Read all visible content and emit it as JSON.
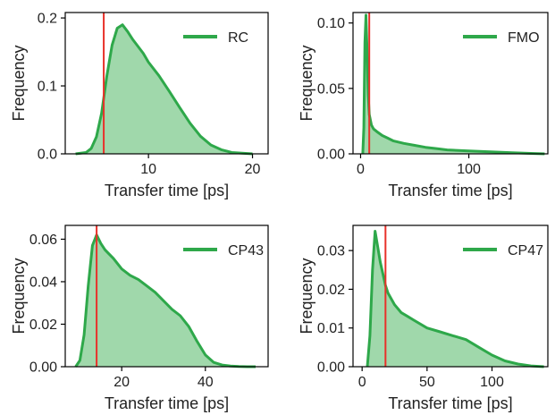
{
  "colors": {
    "line": "#2ea84a",
    "fill": "#8fd19c",
    "marker": "#e8312a",
    "axis": "#000000"
  },
  "chart_data": [
    {
      "type": "area",
      "series": [
        {
          "name": "RC"
        }
      ],
      "xlabel": "Transfer time [ps]",
      "ylabel": "Frequency",
      "xlim": [
        2,
        21.5
      ],
      "ylim": [
        0,
        0.208
      ],
      "xticks": [
        10,
        20
      ],
      "yticks": [
        0.0,
        0.1,
        0.2
      ],
      "ytick_labels": [
        "0.0",
        "0.1",
        "0.2"
      ],
      "legend": "top-right",
      "vline_x": 5.7,
      "x": [
        3,
        4,
        4.5,
        5,
        5.5,
        6,
        6.5,
        7,
        7.5,
        8,
        8.5,
        9,
        9.5,
        10,
        11,
        12,
        13,
        14,
        15,
        16,
        17,
        18,
        19,
        20
      ],
      "y": [
        0.0,
        0.002,
        0.008,
        0.025,
        0.06,
        0.115,
        0.16,
        0.185,
        0.19,
        0.18,
        0.168,
        0.158,
        0.148,
        0.135,
        0.115,
        0.092,
        0.068,
        0.045,
        0.026,
        0.013,
        0.006,
        0.002,
        0.001,
        0.0
      ]
    },
    {
      "type": "area",
      "series": [
        {
          "name": "FMO"
        }
      ],
      "xlabel": "Transfer time [ps]",
      "ylabel": "Frequency",
      "xlim": [
        -7,
        173
      ],
      "ylim": [
        0,
        0.108
      ],
      "xticks": [
        0,
        100
      ],
      "yticks": [
        0.0,
        0.05,
        0.1
      ],
      "ytick_labels": [
        "0.00",
        "0.05",
        "0.10"
      ],
      "legend": "top-right",
      "vline_x": 8,
      "x": [
        2,
        3,
        4,
        5,
        6,
        7,
        8,
        10,
        12,
        15,
        20,
        25,
        30,
        40,
        50,
        60,
        70,
        80,
        100,
        120,
        140,
        160,
        170
      ],
      "y": [
        0.0,
        0.02,
        0.085,
        0.106,
        0.08,
        0.045,
        0.03,
        0.022,
        0.019,
        0.017,
        0.014,
        0.012,
        0.01,
        0.008,
        0.0065,
        0.005,
        0.004,
        0.003,
        0.0022,
        0.0015,
        0.0008,
        0.0003,
        0.0
      ]
    },
    {
      "type": "area",
      "series": [
        {
          "name": "CP43"
        }
      ],
      "xlabel": "Transfer time [ps]",
      "ylabel": "Frequency",
      "xlim": [
        6.5,
        55
      ],
      "ylim": [
        0,
        0.0665
      ],
      "xticks": [
        20,
        40
      ],
      "yticks": [
        0.0,
        0.02,
        0.04,
        0.06
      ],
      "ytick_labels": [
        "0.00",
        "0.02",
        "0.04",
        "0.06"
      ],
      "legend": "top-right",
      "vline_x": 14,
      "x": [
        9,
        10,
        11,
        12,
        13,
        14,
        15,
        16,
        17,
        18,
        20,
        22,
        24,
        26,
        28,
        30,
        32,
        34,
        36,
        38,
        40,
        42,
        44,
        46,
        48,
        50,
        52
      ],
      "y": [
        0.0,
        0.003,
        0.015,
        0.038,
        0.057,
        0.062,
        0.058,
        0.055,
        0.053,
        0.051,
        0.046,
        0.043,
        0.041,
        0.038,
        0.035,
        0.031,
        0.027,
        0.024,
        0.019,
        0.012,
        0.0055,
        0.002,
        0.0008,
        0.0003,
        0.0001,
        0.0,
        0.0
      ]
    },
    {
      "type": "area",
      "series": [
        {
          "name": "CP47"
        }
      ],
      "xlabel": "Transfer time [ps]",
      "ylabel": "Frequency",
      "xlim": [
        -7,
        143
      ],
      "ylim": [
        0,
        0.0365
      ],
      "xticks": [
        0,
        50,
        100
      ],
      "yticks": [
        0.0,
        0.01,
        0.02,
        0.03
      ],
      "ytick_labels": [
        "0.00",
        "0.01",
        "0.02",
        "0.03"
      ],
      "legend": "top-right",
      "vline_x": 18,
      "x": [
        4,
        6,
        8,
        10,
        12,
        14,
        16,
        18,
        20,
        25,
        30,
        35,
        40,
        50,
        60,
        70,
        80,
        90,
        100,
        110,
        120,
        130,
        140
      ],
      "y": [
        0.0,
        0.008,
        0.025,
        0.035,
        0.031,
        0.027,
        0.024,
        0.021,
        0.019,
        0.016,
        0.014,
        0.013,
        0.012,
        0.01,
        0.009,
        0.008,
        0.007,
        0.005,
        0.003,
        0.0015,
        0.0007,
        0.0002,
        0.0
      ]
    }
  ]
}
